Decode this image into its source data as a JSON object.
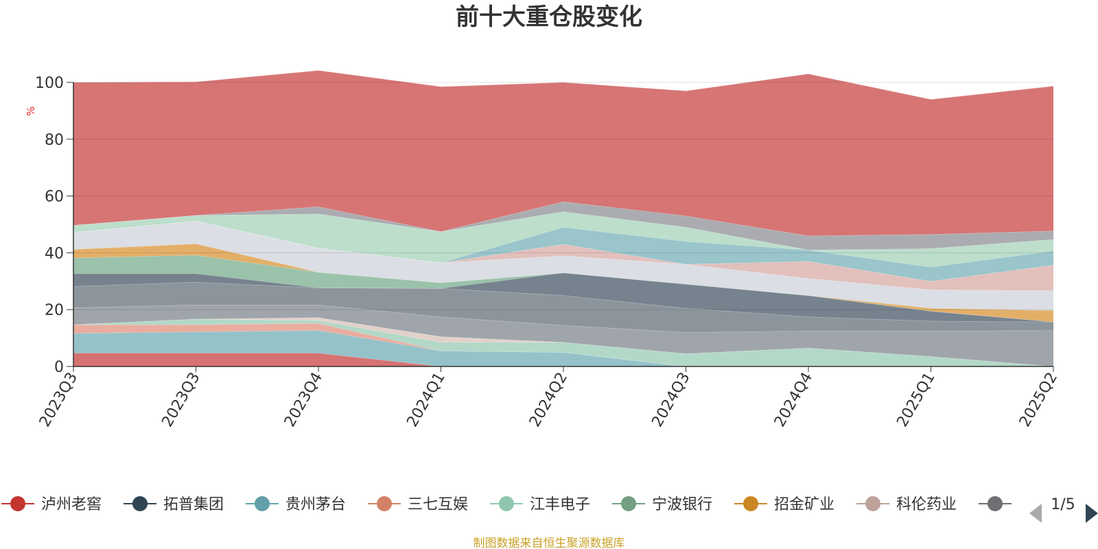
{
  "chart_data": {
    "type": "area",
    "title": "前十大重仓股变化",
    "ylabel": "%",
    "ylim": [
      0,
      100
    ],
    "yticks": [
      0,
      20,
      40,
      60,
      80,
      100
    ],
    "categories": [
      "2023Q3",
      "2023Q3",
      "2023Q4",
      "2024Q1",
      "2024Q2",
      "2024Q3",
      "2024Q4",
      "2025Q1",
      "2025Q2"
    ],
    "grid": true,
    "legend_position": "bottom",
    "series_colors": [
      "#c23531",
      "#2f4554",
      "#61a0a8",
      "#d48265",
      "#91c7ae",
      "#749f83",
      "#ca8622",
      "#bda29a",
      "#6e7074"
    ],
    "layers": [
      {
        "color": "#d46a6a",
        "values": [
          4.7,
          4.7,
          4.7,
          0,
          0,
          0,
          0,
          0,
          0
        ]
      },
      {
        "color": "#8fbfc6",
        "values": [
          7,
          7.5,
          8,
          5.5,
          5,
          0,
          0,
          0,
          0
        ]
      },
      {
        "color": "#e8a99a",
        "values": [
          3,
          2.5,
          2.5,
          0,
          0,
          0,
          0,
          0,
          0
        ]
      },
      {
        "color": "#aed6c4",
        "values": [
          0,
          2,
          1,
          3,
          3.5,
          4.5,
          6.5,
          3.5,
          0
        ]
      },
      {
        "color": "#e0cfc8",
        "values": [
          0,
          0,
          1,
          2,
          0,
          0,
          0,
          0,
          0
        ]
      },
      {
        "color": "#9ba0a6",
        "values": [
          6,
          5,
          4.5,
          7,
          6,
          7.5,
          6,
          9,
          12.7
        ]
      },
      {
        "color": "#878f97",
        "values": [
          7.5,
          8,
          6,
          10,
          10.5,
          8.5,
          5,
          3.5,
          3
        ]
      },
      {
        "color": "#6f7c88",
        "values": [
          4.5,
          3,
          0,
          0,
          8,
          8.5,
          7.5,
          3.5,
          0
        ]
      },
      {
        "color": "#96bfa5",
        "values": [
          5.5,
          6.5,
          5.5,
          2,
          0,
          0,
          0,
          0,
          0
        ]
      },
      {
        "color": "#e2ab60",
        "values": [
          3,
          4,
          0,
          0,
          0,
          0,
          0,
          1,
          4
        ]
      },
      {
        "color": "#d9dce3",
        "values": [
          6,
          8,
          8.5,
          7,
          6,
          7,
          6,
          6.5,
          7
        ]
      },
      {
        "color": "#e0bdb8",
        "values": [
          0,
          0,
          0,
          0,
          4,
          0,
          6,
          3,
          9
        ]
      },
      {
        "color": "#93c2c8",
        "values": [
          0,
          0,
          0,
          0,
          6,
          8,
          4,
          5,
          5
        ]
      },
      {
        "color": "#b8dcc8",
        "values": [
          2.5,
          2,
          12,
          11,
          5.5,
          5,
          0,
          6.5,
          4
        ]
      },
      {
        "color": "#a6a8ad",
        "values": [
          0,
          0,
          2.5,
          0,
          3.5,
          4,
          5,
          5,
          3
        ]
      },
      {
        "color": "#d46e6d",
        "values": [
          50.3,
          47,
          48,
          51,
          42,
          44,
          57,
          47.5,
          51
        ]
      }
    ]
  },
  "legend": {
    "items": [
      {
        "label": "泸州老窖",
        "color": "#c23531"
      },
      {
        "label": "拓普集团",
        "color": "#2f4554"
      },
      {
        "label": "贵州茅台",
        "color": "#61a0a8"
      },
      {
        "label": "三七互娱",
        "color": "#d48265"
      },
      {
        "label": "江丰电子",
        "color": "#91c7ae"
      },
      {
        "label": "宁波银行",
        "color": "#749f83"
      },
      {
        "label": "招金矿业",
        "color": "#ca8622"
      },
      {
        "label": "科伦药业",
        "color": "#bda29a"
      },
      {
        "label": "",
        "color": "#6e7074"
      }
    ],
    "page": "1/5"
  },
  "footer": "制图数据来自恒生聚源数据库"
}
